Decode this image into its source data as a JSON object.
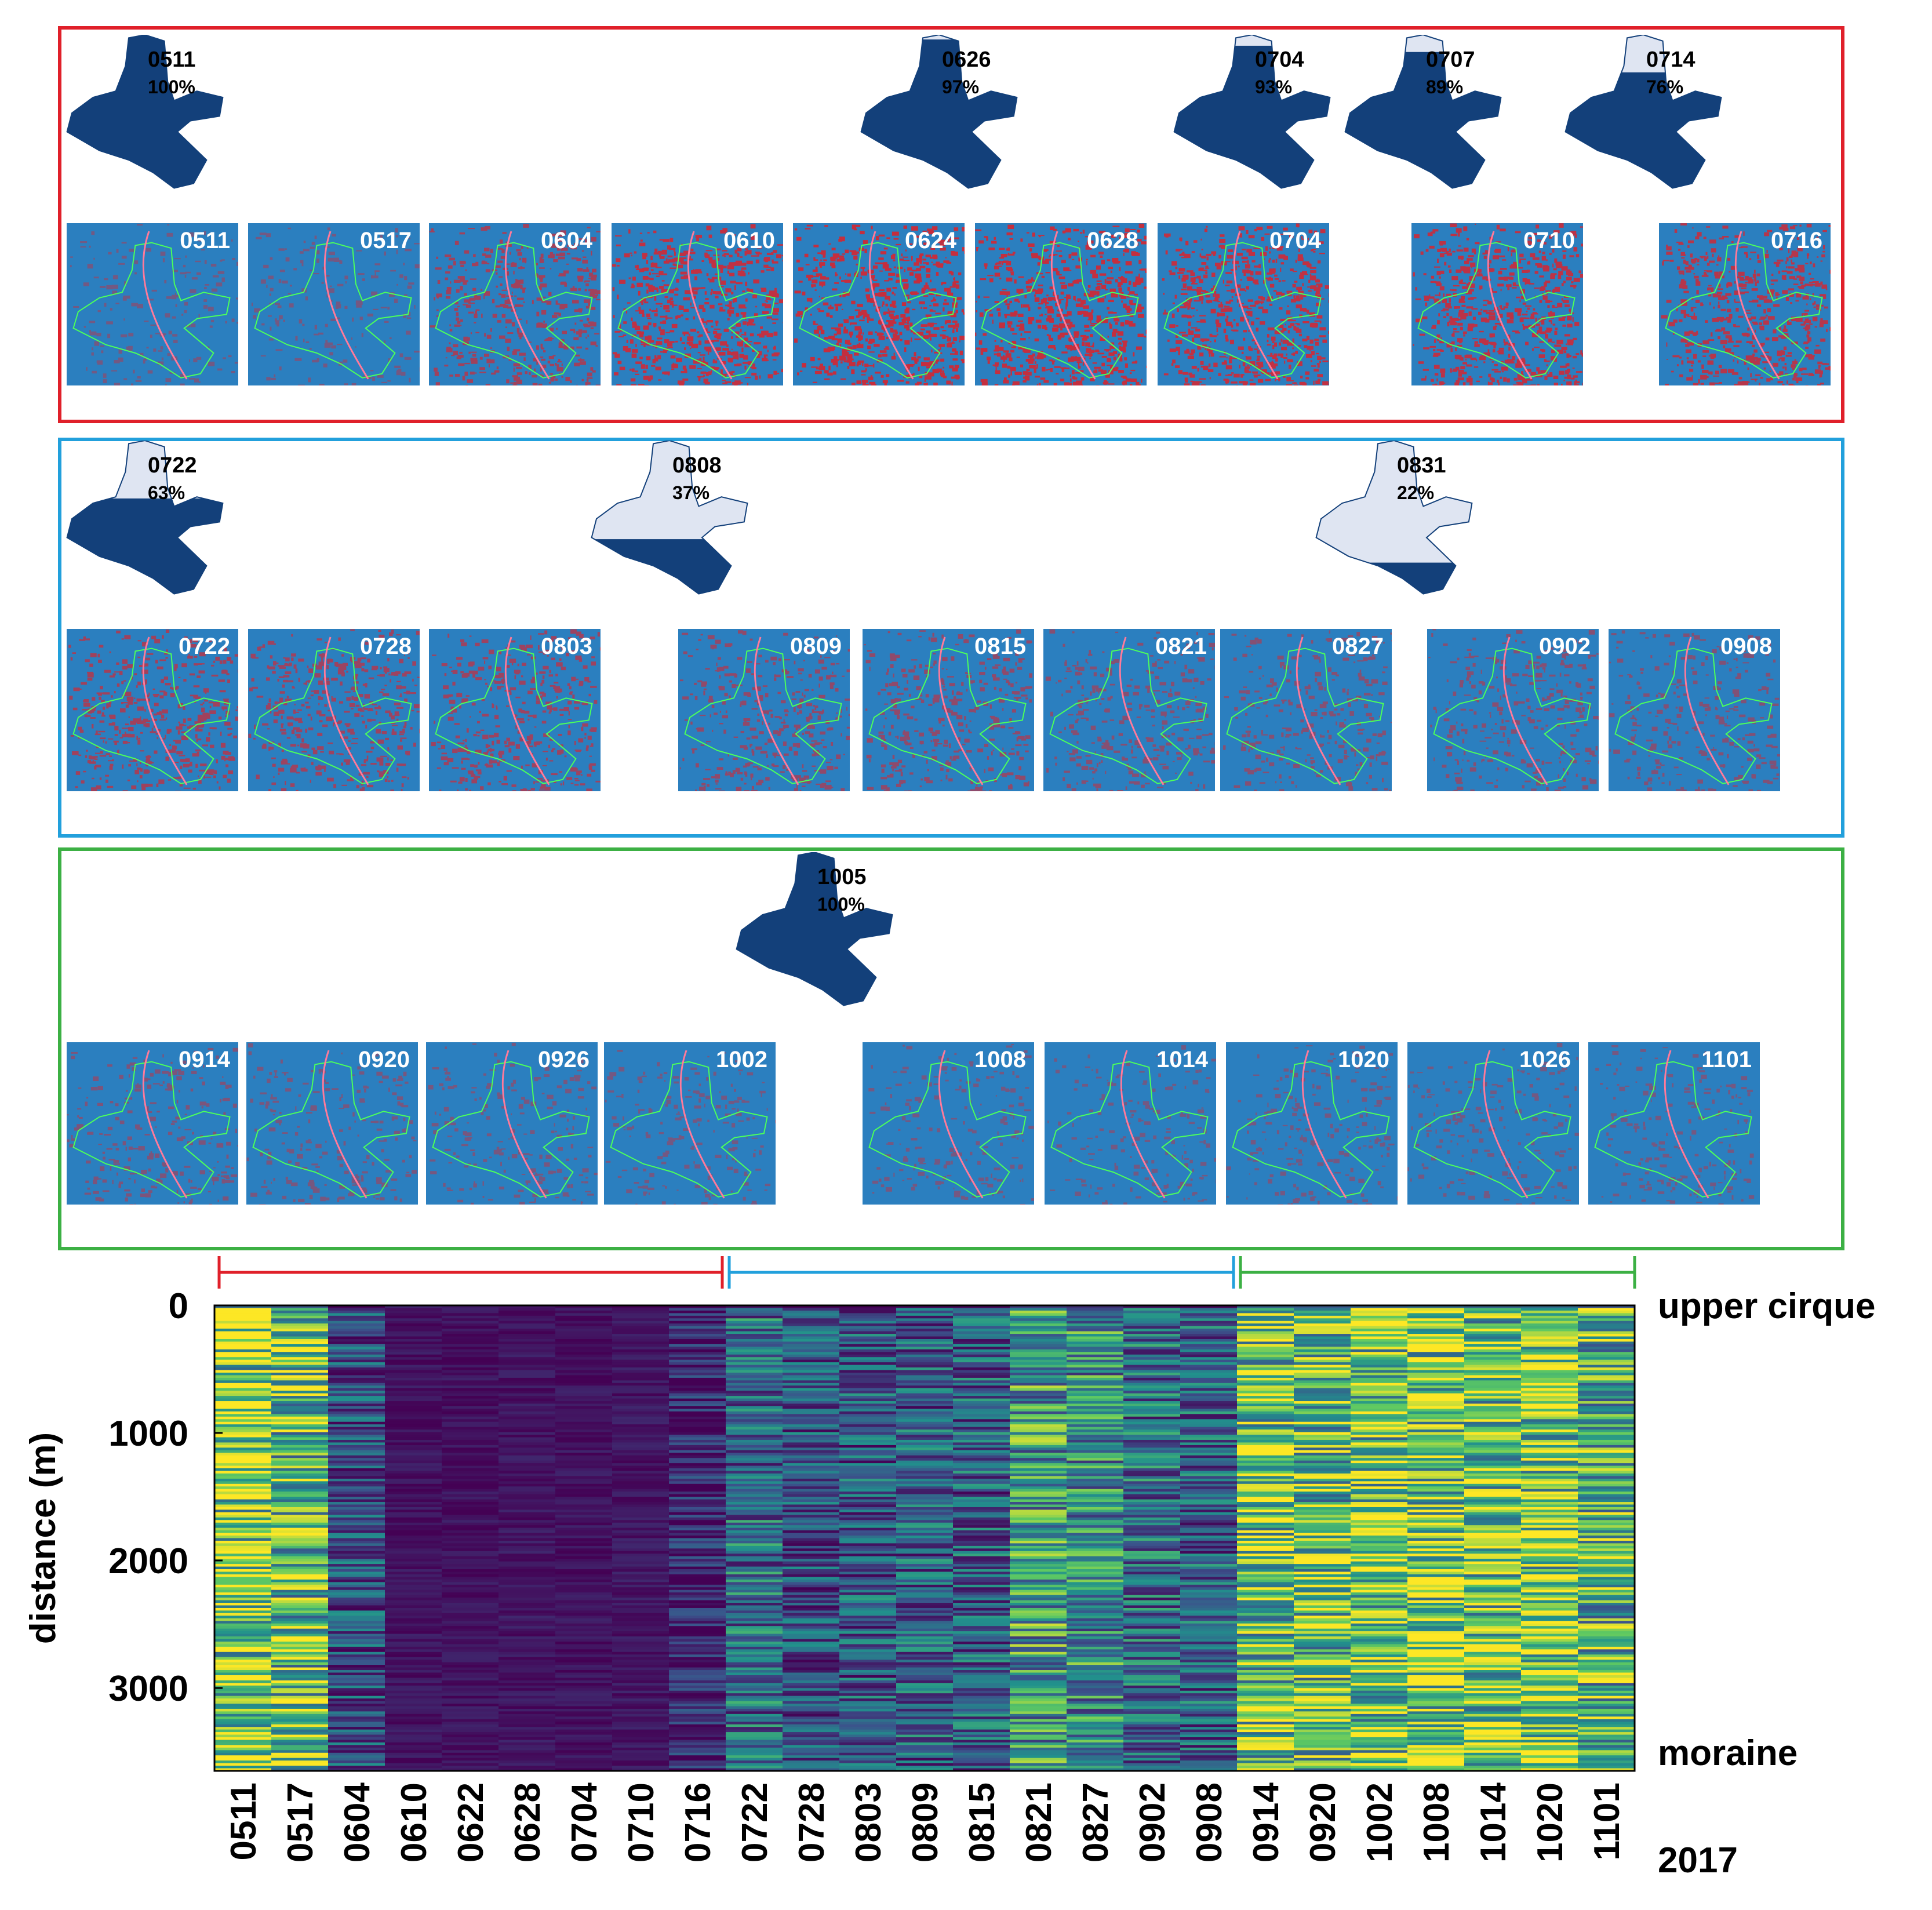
{
  "colors": {
    "red_period": "#e0202a",
    "blue_period": "#22a0dc",
    "green_period": "#3cb044",
    "thumb_bg": "#2b7fbf",
    "snow_red": "#d8242e",
    "outline_dark": "#13407a",
    "outline_light": "#dfe5f2"
  },
  "panels": [
    {
      "name": "red",
      "outlines": [
        {
          "date": "0511",
          "pct": "100%",
          "coverage": 1.0
        },
        {
          "date": "0626",
          "pct": "97%",
          "coverage": 0.97
        },
        {
          "date": "0704",
          "pct": "93%",
          "coverage": 0.93
        },
        {
          "date": "0707",
          "pct": "89%",
          "coverage": 0.89
        },
        {
          "date": "0714",
          "pct": "76%",
          "coverage": 0.76
        }
      ],
      "thumbs": [
        {
          "date": "0511",
          "density": 0.1
        },
        {
          "date": "0517",
          "density": 0.12
        },
        {
          "date": "0604",
          "density": 0.55
        },
        {
          "date": "0610",
          "density": 0.85
        },
        {
          "date": "0624",
          "density": 0.9
        },
        {
          "date": "0628",
          "density": 0.88
        },
        {
          "date": "0704",
          "density": 0.85
        },
        {
          "date": "0710",
          "density": 0.82
        },
        {
          "date": "0716",
          "density": 0.75
        }
      ]
    },
    {
      "name": "blue",
      "outlines": [
        {
          "date": "0722",
          "pct": "63%",
          "coverage": 0.63
        },
        {
          "date": "0808",
          "pct": "37%",
          "coverage": 0.37
        },
        {
          "date": "0831",
          "pct": "22%",
          "coverage": 0.22
        }
      ],
      "thumbs": [
        {
          "date": "0722",
          "density": 0.55
        },
        {
          "date": "0728",
          "density": 0.5
        },
        {
          "date": "0803",
          "density": 0.5
        },
        {
          "date": "0809",
          "density": 0.4
        },
        {
          "date": "0815",
          "density": 0.38
        },
        {
          "date": "0821",
          "density": 0.3
        },
        {
          "date": "0827",
          "density": 0.28
        },
        {
          "date": "0902",
          "density": 0.3
        },
        {
          "date": "0908",
          "density": 0.25
        }
      ]
    },
    {
      "name": "green",
      "outlines": [
        {
          "date": "1005",
          "pct": "100%",
          "coverage": 1.0
        }
      ],
      "thumbs": [
        {
          "date": "0914",
          "density": 0.2
        },
        {
          "date": "0920",
          "density": 0.15
        },
        {
          "date": "0926",
          "density": 0.15
        },
        {
          "date": "1002",
          "density": 0.12
        },
        {
          "date": "1008",
          "density": 0.12
        },
        {
          "date": "1014",
          "density": 0.1
        },
        {
          "date": "1020",
          "density": 0.12
        },
        {
          "date": "1026",
          "density": 0.1
        },
        {
          "date": "1101",
          "density": 0.12
        }
      ]
    }
  ],
  "chart_data": {
    "type": "heatmap",
    "title": "",
    "ylabel": "distance (m)",
    "xlabel": "2017",
    "yticks": [
      0,
      1000,
      2000,
      3000
    ],
    "ylim": [
      0,
      3650
    ],
    "top_annotation": "upper cirque",
    "bottom_annotation": "moraine",
    "year_label": "2017",
    "colormap": "viridis",
    "categories": [
      "0511",
      "0517",
      "0604",
      "0610",
      "0622",
      "0628",
      "0704",
      "0710",
      "0716",
      "0722",
      "0728",
      "0803",
      "0809",
      "0815",
      "0821",
      "0827",
      "0902",
      "0908",
      "0914",
      "0920",
      "1002",
      "1008",
      "1014",
      "1020",
      "1101"
    ],
    "column_mean_values": [
      0.8,
      0.7,
      0.25,
      0.05,
      0.05,
      0.06,
      0.05,
      0.06,
      0.1,
      0.35,
      0.25,
      0.28,
      0.3,
      0.3,
      0.55,
      0.5,
      0.35,
      0.3,
      0.75,
      0.7,
      0.75,
      0.8,
      0.75,
      0.8,
      0.65
    ],
    "period_brackets": [
      {
        "name": "red",
        "from_index": 0,
        "to_index": 8
      },
      {
        "name": "blue",
        "from_index": 9,
        "to_index": 17
      },
      {
        "name": "green",
        "from_index": 18,
        "to_index": 24
      }
    ]
  }
}
